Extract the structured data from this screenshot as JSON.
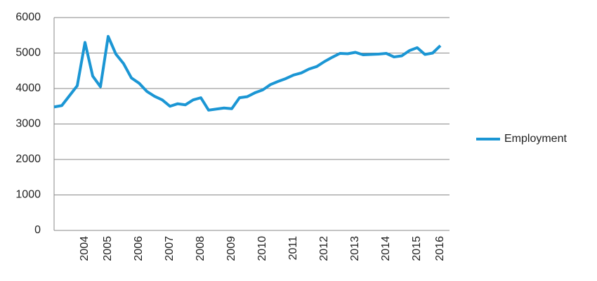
{
  "chart_data": {
    "type": "line",
    "categories": [
      null,
      null,
      null,
      null,
      "2004",
      null,
      null,
      "2005",
      null,
      null,
      null,
      "2006",
      null,
      null,
      null,
      "2007",
      null,
      null,
      null,
      "2008",
      null,
      null,
      null,
      "2009",
      null,
      null,
      null,
      "2010",
      null,
      null,
      null,
      "2011",
      null,
      null,
      null,
      "2012",
      null,
      null,
      null,
      "2013",
      null,
      null,
      null,
      "2014",
      null,
      null,
      null,
      "2015",
      null,
      null,
      "2016"
    ],
    "series": [
      {
        "name": "Employment",
        "color": "#1b96d4",
        "values": [
          3480,
          3520,
          3800,
          4080,
          5300,
          4350,
          4050,
          5470,
          4970,
          4700,
          4300,
          4150,
          3920,
          3780,
          3680,
          3500,
          3570,
          3540,
          3680,
          3740,
          3390,
          3420,
          3450,
          3430,
          3740,
          3770,
          3880,
          3960,
          4110,
          4200,
          4280,
          4380,
          4440,
          4550,
          4620,
          4760,
          4880,
          4990,
          4980,
          5020,
          4950,
          4960,
          4970,
          4990,
          4890,
          4920,
          5070,
          5150,
          4960,
          5000,
          5210
        ]
      }
    ],
    "ylim": [
      0,
      6000
    ],
    "yticks": [
      0,
      1000,
      2000,
      3000,
      4000,
      5000,
      6000
    ],
    "grid": true,
    "legend": "right"
  }
}
